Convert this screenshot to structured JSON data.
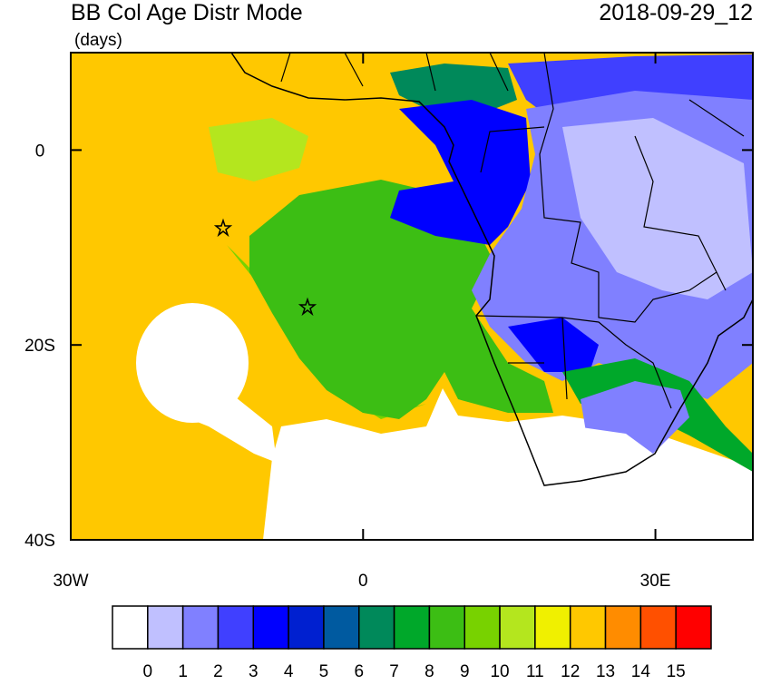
{
  "header": {
    "title": "BB Col Age Distr Mode",
    "units": "(days)",
    "date": "2018-09-29_12"
  },
  "map": {
    "lonlim": [
      -30,
      40
    ],
    "latlim": [
      -40,
      10
    ],
    "yticks": [
      {
        "value": 0,
        "label": "0"
      },
      {
        "value": -20,
        "label": "20S"
      },
      {
        "value": -40,
        "label": "40S"
      }
    ],
    "xticks": [
      {
        "value": -30,
        "label": "30W"
      },
      {
        "value": 0,
        "label": "0"
      },
      {
        "value": 30,
        "label": "30E"
      }
    ]
  },
  "colorbar": {
    "labels": [
      0,
      1,
      2,
      3,
      4,
      5,
      6,
      7,
      8,
      9,
      10,
      11,
      12,
      13,
      14,
      15
    ],
    "colors": [
      "#ffffff",
      "#c0c0ff",
      "#8080ff",
      "#4040ff",
      "#0000ff",
      "#0020d0",
      "#005aa0",
      "#00895a",
      "#00a82a",
      "#3cbe14",
      "#78d200",
      "#b4e61e",
      "#f0f000",
      "#ffc800",
      "#ff8c00",
      "#ff5000",
      "#ff0000"
    ]
  }
}
